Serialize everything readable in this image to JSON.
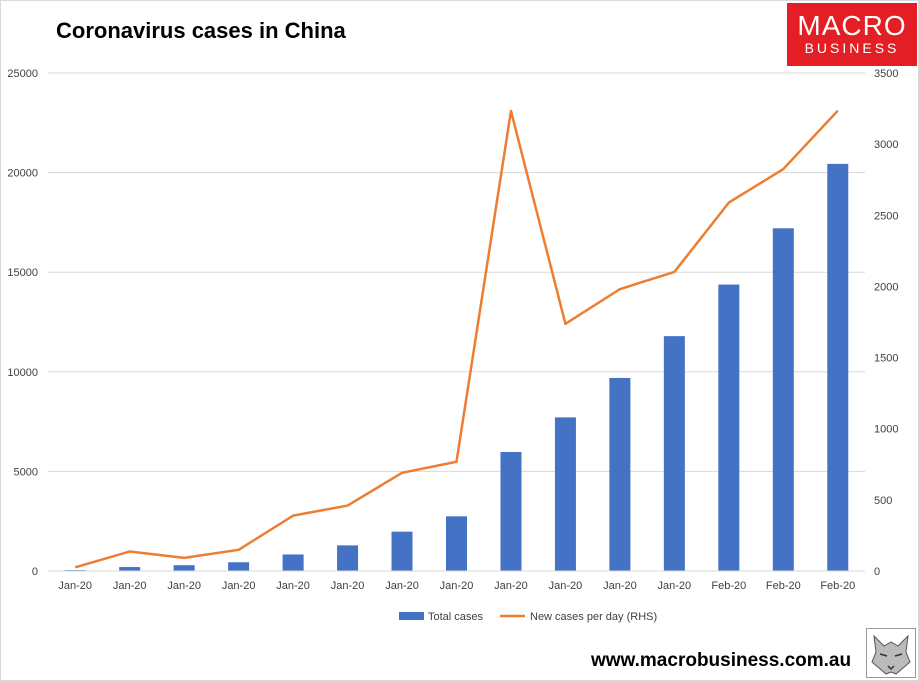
{
  "title": "Coronavirus cases in China",
  "logo": {
    "line1": "MACRO",
    "line2": "BUSINESS",
    "color": "#e31e24"
  },
  "url": "www.macrobusiness.com.au",
  "colors": {
    "bar": "#4472c4",
    "line": "#ed7d31",
    "grid": "#d9d9d9",
    "tick": "#404040"
  },
  "chart_data": {
    "type": "bar",
    "title": "Coronavirus cases in China",
    "categories": [
      "Jan-20",
      "Jan-20",
      "Jan-20",
      "Jan-20",
      "Jan-20",
      "Jan-20",
      "Jan-20",
      "Jan-20",
      "Jan-20",
      "Jan-20",
      "Jan-20",
      "Jan-20",
      "Feb-20",
      "Feb-20",
      "Feb-20"
    ],
    "series": [
      {
        "name": "Total cases",
        "type": "bar",
        "axis": "left",
        "values": [
          45,
          198,
          291,
          440,
          830,
          1287,
          1975,
          2744,
          5974,
          7711,
          9692,
          11791,
          14380,
          17205,
          20438
        ]
      },
      {
        "name": "New cases per day (RHS)",
        "type": "line",
        "axis": "right",
        "values": [
          26,
          137,
          92,
          149,
          389,
          460,
          690,
          768,
          3233,
          1737,
          1981,
          2102,
          2589,
          2825,
          3235
        ]
      }
    ],
    "y_left": {
      "min": 0,
      "max": 25000,
      "ticks": [
        "0",
        "5000",
        "10000",
        "15000",
        "20000",
        "25000"
      ]
    },
    "y_right": {
      "min": 0,
      "max": 3500,
      "ticks": [
        "0",
        "500",
        "1000",
        "1500",
        "2000",
        "2500",
        "3000",
        "3500"
      ]
    },
    "grid": true,
    "legend": "bottom"
  }
}
